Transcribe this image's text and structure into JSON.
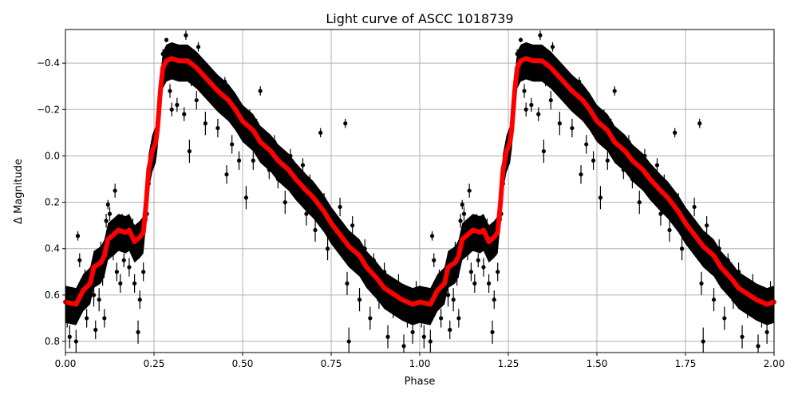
{
  "chart_data": {
    "type": "scatter",
    "title": "Light curve of ASCC 1018739",
    "xlabel": "Phase",
    "ylabel": "Δ Magnitude",
    "xlim": [
      0,
      2.0
    ],
    "ylim": [
      0.848,
      -0.545
    ],
    "y_inverted": true,
    "grid": true,
    "xticks": [
      "0.00",
      "0.25",
      "0.50",
      "0.75",
      "1.00",
      "1.25",
      "1.50",
      "1.75",
      "2.00"
    ],
    "xtick_values": [
      0,
      0.25,
      0.5,
      0.75,
      1.0,
      1.25,
      1.5,
      1.75,
      2.0
    ],
    "yticks": [
      "−0.4",
      "−0.2",
      "0.0",
      "0.2",
      "0.4",
      "0.6",
      "0.8"
    ],
    "ytick_values": [
      -0.4,
      -0.2,
      0.0,
      0.2,
      0.4,
      0.6,
      0.8
    ],
    "colors": {
      "points": "#000000",
      "model": "#ff0000",
      "grid": "#b0b0b0"
    },
    "phase_repeat": 2,
    "model_curve": [
      [
        0.0,
        0.63
      ],
      [
        0.03,
        0.64
      ],
      [
        0.05,
        0.58
      ],
      [
        0.07,
        0.55
      ],
      [
        0.08,
        0.48
      ],
      [
        0.1,
        0.46
      ],
      [
        0.11,
        0.43
      ],
      [
        0.12,
        0.36
      ],
      [
        0.135,
        0.34
      ],
      [
        0.15,
        0.32
      ],
      [
        0.17,
        0.33
      ],
      [
        0.18,
        0.32
      ],
      [
        0.195,
        0.37
      ],
      [
        0.21,
        0.35
      ],
      [
        0.22,
        0.33
      ],
      [
        0.228,
        0.2
      ],
      [
        0.235,
        0.06
      ],
      [
        0.245,
        -0.02
      ],
      [
        0.255,
        -0.06
      ],
      [
        0.26,
        -0.12
      ],
      [
        0.268,
        -0.28
      ],
      [
        0.275,
        -0.38
      ],
      [
        0.285,
        -0.41
      ],
      [
        0.3,
        -0.42
      ],
      [
        0.32,
        -0.41
      ],
      [
        0.345,
        -0.41
      ],
      [
        0.37,
        -0.38
      ],
      [
        0.4,
        -0.33
      ],
      [
        0.43,
        -0.28
      ],
      [
        0.46,
        -0.24
      ],
      [
        0.48,
        -0.2
      ],
      [
        0.5,
        -0.15
      ],
      [
        0.53,
        -0.11
      ],
      [
        0.55,
        -0.06
      ],
      [
        0.58,
        -0.02
      ],
      [
        0.6,
        0.02
      ],
      [
        0.63,
        0.06
      ],
      [
        0.65,
        0.1
      ],
      [
        0.68,
        0.15
      ],
      [
        0.7,
        0.18
      ],
      [
        0.73,
        0.24
      ],
      [
        0.75,
        0.29
      ],
      [
        0.78,
        0.35
      ],
      [
        0.8,
        0.39
      ],
      [
        0.83,
        0.43
      ],
      [
        0.85,
        0.48
      ],
      [
        0.88,
        0.53
      ],
      [
        0.9,
        0.57
      ],
      [
        0.93,
        0.6
      ],
      [
        0.95,
        0.62
      ],
      [
        0.98,
        0.64
      ],
      [
        1.0,
        0.63
      ]
    ],
    "points": [
      [
        0.005,
        0.7,
        0.04
      ],
      [
        0.012,
        0.78,
        0.05
      ],
      [
        0.02,
        0.66,
        0.04
      ],
      [
        0.03,
        0.8,
        0.05
      ],
      [
        0.035,
        0.345,
        0.02
      ],
      [
        0.04,
        0.45,
        0.03
      ],
      [
        0.045,
        0.6,
        0.04
      ],
      [
        0.055,
        0.52,
        0.03
      ],
      [
        0.06,
        0.7,
        0.04
      ],
      [
        0.07,
        0.56,
        0.03
      ],
      [
        0.08,
        0.6,
        0.05
      ],
      [
        0.085,
        0.75,
        0.04
      ],
      [
        0.095,
        0.62,
        0.05
      ],
      [
        0.1,
        0.4,
        0.03
      ],
      [
        0.105,
        0.52,
        0.04
      ],
      [
        0.11,
        0.7,
        0.04
      ],
      [
        0.115,
        0.28,
        0.03
      ],
      [
        0.12,
        0.21,
        0.02
      ],
      [
        0.125,
        0.25,
        0.03
      ],
      [
        0.13,
        0.36,
        0.04
      ],
      [
        0.135,
        0.42,
        0.03
      ],
      [
        0.14,
        0.15,
        0.03
      ],
      [
        0.145,
        0.5,
        0.04
      ],
      [
        0.15,
        0.38,
        0.03
      ],
      [
        0.155,
        0.55,
        0.04
      ],
      [
        0.16,
        0.28,
        0.03
      ],
      [
        0.165,
        0.45,
        0.03
      ],
      [
        0.17,
        0.39,
        0.03
      ],
      [
        0.18,
        0.48,
        0.04
      ],
      [
        0.185,
        0.35,
        0.03
      ],
      [
        0.19,
        0.3,
        0.03
      ],
      [
        0.195,
        0.55,
        0.04
      ],
      [
        0.2,
        0.42,
        0.03
      ],
      [
        0.205,
        0.76,
        0.05
      ],
      [
        0.21,
        0.62,
        0.04
      ],
      [
        0.215,
        0.4,
        0.03
      ],
      [
        0.22,
        0.5,
        0.04
      ],
      [
        0.23,
        0.25,
        0.03
      ],
      [
        0.235,
        0.12,
        0.03
      ],
      [
        0.24,
        0.02,
        0.02
      ],
      [
        0.25,
        -0.05,
        0.02
      ],
      [
        0.26,
        -0.14,
        0.02
      ],
      [
        0.27,
        -0.32,
        0.02
      ],
      [
        0.275,
        -0.44,
        0.02
      ],
      [
        0.285,
        -0.5,
        0.01
      ],
      [
        0.29,
        -0.36,
        0.03
      ],
      [
        0.295,
        -0.28,
        0.03
      ],
      [
        0.3,
        -0.2,
        0.03
      ],
      [
        0.31,
        -0.45,
        0.02
      ],
      [
        0.315,
        -0.22,
        0.03
      ],
      [
        0.32,
        -0.4,
        0.02
      ],
      [
        0.33,
        -0.45,
        0.02
      ],
      [
        0.335,
        -0.18,
        0.03
      ],
      [
        0.34,
        -0.52,
        0.02
      ],
      [
        0.35,
        -0.02,
        0.05
      ],
      [
        0.355,
        -0.33,
        0.03
      ],
      [
        0.36,
        -0.42,
        0.02
      ],
      [
        0.37,
        -0.24,
        0.04
      ],
      [
        0.375,
        -0.47,
        0.02
      ],
      [
        0.39,
        -0.3,
        0.03
      ],
      [
        0.395,
        -0.14,
        0.05
      ],
      [
        0.41,
        -0.26,
        0.03
      ],
      [
        0.42,
        -0.34,
        0.02
      ],
      [
        0.43,
        -0.12,
        0.04
      ],
      [
        0.44,
        -0.22,
        0.03
      ],
      [
        0.45,
        -0.32,
        0.02
      ],
      [
        0.455,
        0.08,
        0.04
      ],
      [
        0.47,
        -0.05,
        0.04
      ],
      [
        0.48,
        -0.2,
        0.03
      ],
      [
        0.49,
        0.02,
        0.04
      ],
      [
        0.5,
        -0.1,
        0.03
      ],
      [
        0.51,
        0.18,
        0.05
      ],
      [
        0.52,
        -0.18,
        0.02
      ],
      [
        0.53,
        0.02,
        0.04
      ],
      [
        0.54,
        -0.14,
        0.02
      ],
      [
        0.55,
        -0.28,
        0.02
      ],
      [
        0.56,
        -0.02,
        0.03
      ],
      [
        0.575,
        0.06,
        0.04
      ],
      [
        0.59,
        -0.06,
        0.03
      ],
      [
        0.6,
        0.1,
        0.04
      ],
      [
        0.62,
        0.2,
        0.05
      ],
      [
        0.635,
        0.0,
        0.03
      ],
      [
        0.65,
        0.14,
        0.04
      ],
      [
        0.67,
        0.04,
        0.03
      ],
      [
        0.68,
        0.25,
        0.05
      ],
      [
        0.69,
        0.12,
        0.04
      ],
      [
        0.705,
        0.32,
        0.05
      ],
      [
        0.72,
        -0.1,
        0.02
      ],
      [
        0.73,
        0.2,
        0.04
      ],
      [
        0.74,
        0.4,
        0.05
      ],
      [
        0.76,
        0.35,
        0.04
      ],
      [
        0.775,
        0.22,
        0.04
      ],
      [
        0.79,
        -0.14,
        0.02
      ],
      [
        0.795,
        0.55,
        0.05
      ],
      [
        0.8,
        0.8,
        0.06
      ],
      [
        0.81,
        0.3,
        0.04
      ],
      [
        0.82,
        0.45,
        0.04
      ],
      [
        0.83,
        0.62,
        0.05
      ],
      [
        0.845,
        0.4,
        0.04
      ],
      [
        0.86,
        0.7,
        0.05
      ],
      [
        0.87,
        0.45,
        0.03
      ],
      [
        0.885,
        0.62,
        0.04
      ],
      [
        0.9,
        0.5,
        0.04
      ],
      [
        0.91,
        0.78,
        0.05
      ],
      [
        0.925,
        0.66,
        0.04
      ],
      [
        0.94,
        0.55,
        0.04
      ],
      [
        0.955,
        0.82,
        0.05
      ],
      [
        0.965,
        0.7,
        0.04
      ],
      [
        0.98,
        0.76,
        0.05
      ],
      [
        0.99,
        0.58,
        0.04
      ]
    ]
  }
}
